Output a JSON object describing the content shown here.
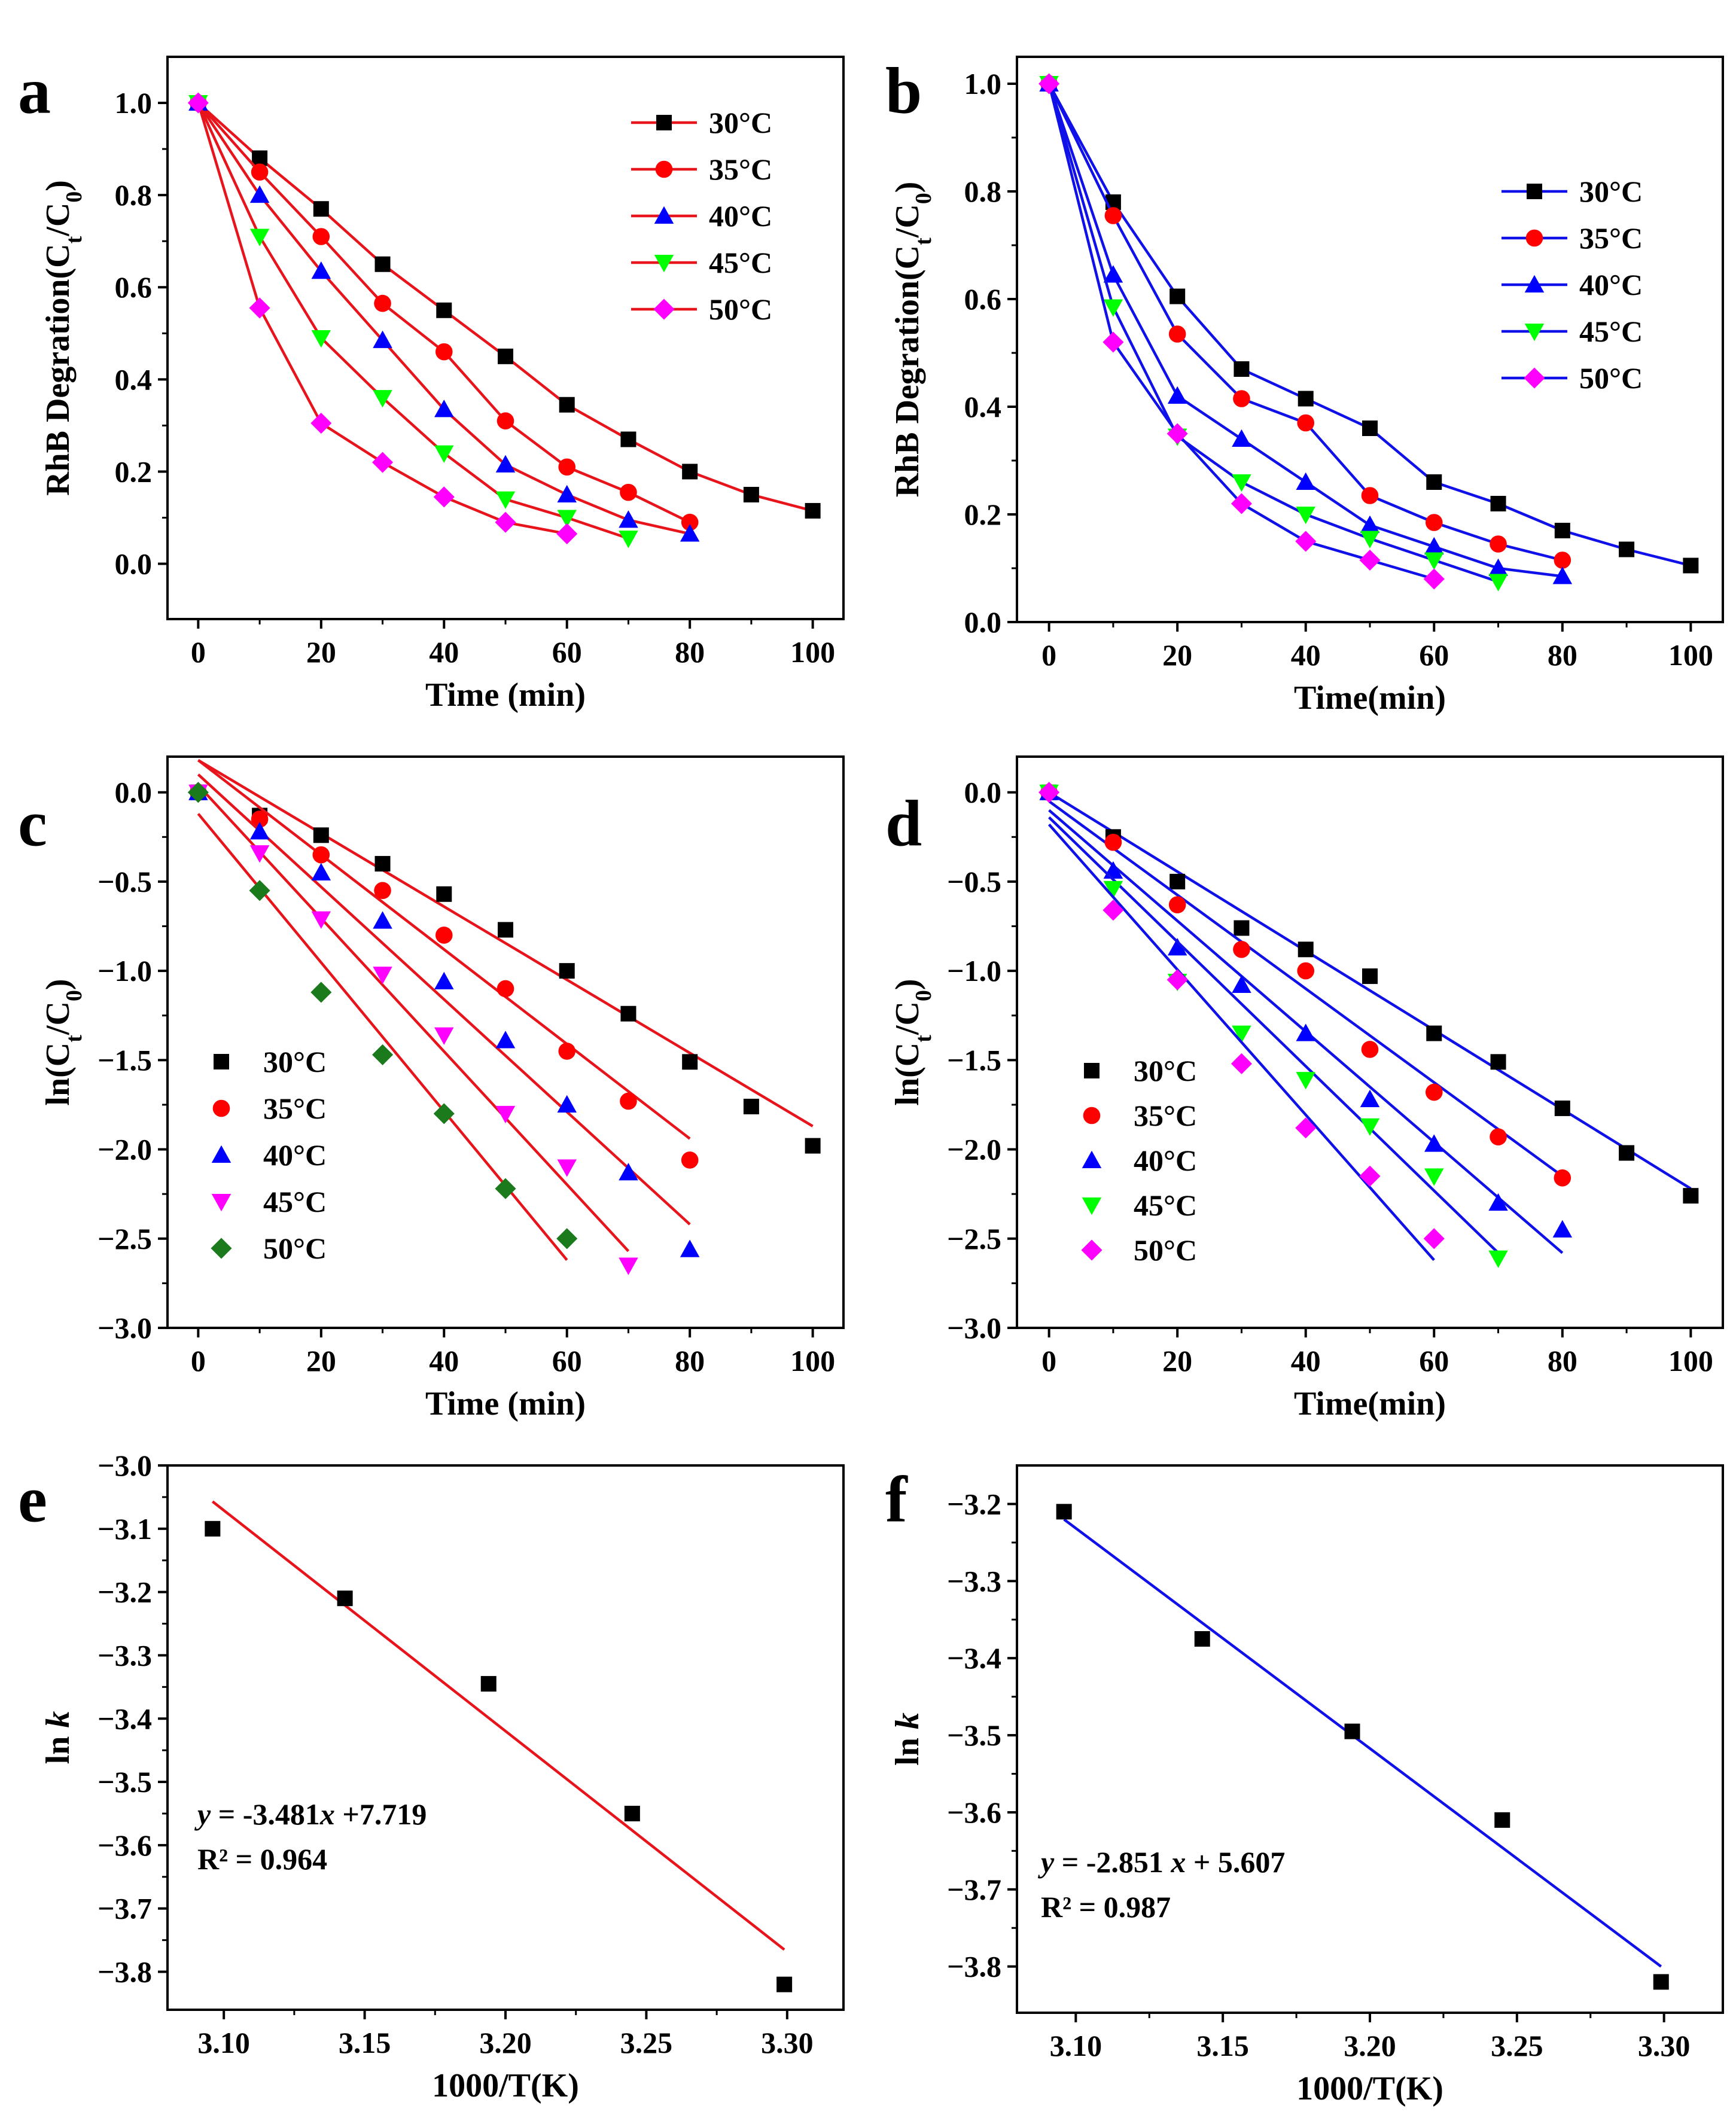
{
  "chart_data": [
    {
      "panel": "a",
      "type": "line",
      "xlabel": "Time (min)",
      "ylabel": "RhB Degration(C_t/C_0)",
      "xlim": [
        -5,
        105
      ],
      "ylim": [
        -0.12,
        1.1
      ],
      "xticks": [
        0,
        20,
        40,
        60,
        80,
        100
      ],
      "yticks": [
        0.0,
        0.2,
        0.4,
        0.6,
        0.8,
        1.0
      ],
      "series": [
        {
          "name": "30°C",
          "color": "#e8141c",
          "marker": "square",
          "marker_color": "#000000",
          "x": [
            0,
            10,
            20,
            30,
            40,
            50,
            60,
            70,
            80,
            90,
            100
          ],
          "y": [
            1.0,
            0.88,
            0.77,
            0.65,
            0.55,
            0.45,
            0.345,
            0.27,
            0.2,
            0.15,
            0.115
          ]
        },
        {
          "name": "35°C",
          "color": "#e8141c",
          "marker": "circle",
          "marker_color": "#ff0000",
          "x": [
            0,
            10,
            20,
            30,
            40,
            50,
            60,
            70,
            80
          ],
          "y": [
            1.0,
            0.85,
            0.71,
            0.565,
            0.46,
            0.31,
            0.21,
            0.155,
            0.09
          ]
        },
        {
          "name": "40°C",
          "color": "#e8141c",
          "marker": "triangle-up",
          "marker_color": "#0000ff",
          "x": [
            0,
            10,
            20,
            30,
            40,
            50,
            60,
            70,
            80
          ],
          "y": [
            1.0,
            0.8,
            0.635,
            0.485,
            0.335,
            0.215,
            0.15,
            0.095,
            0.065
          ]
        },
        {
          "name": "45°C",
          "color": "#e8141c",
          "marker": "triangle-down",
          "marker_color": "#00ff00",
          "x": [
            0,
            10,
            20,
            30,
            40,
            50,
            60,
            70
          ],
          "y": [
            1.0,
            0.71,
            0.49,
            0.36,
            0.24,
            0.14,
            0.1,
            0.055
          ]
        },
        {
          "name": "50°C",
          "color": "#e8141c",
          "marker": "diamond",
          "marker_color": "#ff00ff",
          "x": [
            0,
            10,
            20,
            30,
            40,
            50,
            60
          ],
          "y": [
            1.0,
            0.555,
            0.305,
            0.22,
            0.145,
            0.09,
            0.065
          ]
        }
      ],
      "legend": "top-right"
    },
    {
      "panel": "b",
      "type": "line",
      "xlabel": "Time(min)",
      "ylabel": "RhB Degration(C_t/C_0)",
      "xlim": [
        -5,
        105
      ],
      "ylim": [
        0.0,
        1.05
      ],
      "xticks": [
        0,
        20,
        40,
        60,
        80,
        100
      ],
      "yticks": [
        0.0,
        0.2,
        0.4,
        0.6,
        0.8,
        1.0
      ],
      "series": [
        {
          "name": "30°C",
          "color": "#1010e8",
          "marker": "square",
          "marker_color": "#000000",
          "x": [
            0,
            10,
            20,
            30,
            40,
            50,
            60,
            70,
            80,
            90,
            100
          ],
          "y": [
            1.0,
            0.78,
            0.605,
            0.47,
            0.415,
            0.36,
            0.26,
            0.22,
            0.17,
            0.135,
            0.105
          ]
        },
        {
          "name": "35°C",
          "color": "#1010e8",
          "marker": "circle",
          "marker_color": "#ff0000",
          "x": [
            0,
            10,
            20,
            30,
            40,
            50,
            60,
            70,
            80
          ],
          "y": [
            1.0,
            0.755,
            0.535,
            0.415,
            0.37,
            0.235,
            0.185,
            0.145,
            0.115
          ]
        },
        {
          "name": "40°C",
          "color": "#1010e8",
          "marker": "triangle-up",
          "marker_color": "#0000ff",
          "x": [
            0,
            10,
            20,
            30,
            40,
            50,
            60,
            70,
            80
          ],
          "y": [
            1.0,
            0.645,
            0.42,
            0.34,
            0.26,
            0.18,
            0.14,
            0.1,
            0.085
          ]
        },
        {
          "name": "45°C",
          "color": "#1010e8",
          "marker": "triangle-down",
          "marker_color": "#00ff00",
          "x": [
            0,
            10,
            20,
            30,
            40,
            50,
            60,
            70
          ],
          "y": [
            1.0,
            0.585,
            0.345,
            0.26,
            0.2,
            0.155,
            0.115,
            0.075
          ]
        },
        {
          "name": "50°C",
          "color": "#1010e8",
          "marker": "diamond",
          "marker_color": "#ff00ff",
          "x": [
            0,
            10,
            20,
            30,
            40,
            50,
            60
          ],
          "y": [
            1.0,
            0.52,
            0.35,
            0.22,
            0.15,
            0.115,
            0.08
          ]
        }
      ],
      "legend": "right"
    },
    {
      "panel": "c",
      "type": "scatter",
      "xlabel": "Time (min)",
      "ylabel": "ln(C_t/C_0)",
      "xlim": [
        -5,
        105
      ],
      "ylim": [
        -3.0,
        0.2
      ],
      "xticks": [
        0,
        20,
        40,
        60,
        80,
        100
      ],
      "yticks": [
        0.0,
        -0.5,
        -1.0,
        -1.5,
        -2.0,
        -2.5,
        -3.0
      ],
      "fit_color": "#e8141c",
      "series": [
        {
          "name": "30°C",
          "marker": "square",
          "marker_color": "#000000",
          "x": [
            0,
            10,
            20,
            30,
            40,
            50,
            60,
            70,
            80,
            90,
            100
          ],
          "y": [
            0.0,
            -0.13,
            -0.24,
            -0.4,
            -0.57,
            -0.77,
            -1.0,
            -1.24,
            -1.51,
            -1.76,
            -1.98
          ],
          "fit": [
            [
              0,
              0.18
            ],
            [
              100,
              -1.87
            ]
          ]
        },
        {
          "name": "35°C",
          "marker": "circle",
          "marker_color": "#ff0000",
          "x": [
            0,
            10,
            20,
            30,
            40,
            50,
            60,
            70,
            80
          ],
          "y": [
            0.0,
            -0.15,
            -0.35,
            -0.55,
            -0.8,
            -1.1,
            -1.45,
            -1.73,
            -2.06
          ],
          "fit": [
            [
              0,
              0.18
            ],
            [
              80,
              -1.94
            ]
          ]
        },
        {
          "name": "40°C",
          "marker": "triangle-up",
          "marker_color": "#0000ff",
          "x": [
            0,
            10,
            20,
            30,
            40,
            50,
            60,
            70,
            80
          ],
          "y": [
            0.0,
            -0.22,
            -0.45,
            -0.72,
            -1.06,
            -1.39,
            -1.75,
            -2.13,
            -2.56
          ],
          "fit": [
            [
              0,
              0.1
            ],
            [
              80,
              -2.42
            ]
          ]
        },
        {
          "name": "45°C",
          "marker": "triangle-down",
          "marker_color": "#ff00ff",
          "x": [
            0,
            10,
            20,
            30,
            40,
            50,
            60,
            70
          ],
          "y": [
            0.0,
            -0.34,
            -0.71,
            -1.02,
            -1.36,
            -1.8,
            -2.1,
            -2.65
          ],
          "fit": [
            [
              0,
              0.04
            ],
            [
              70,
              -2.57
            ]
          ]
        },
        {
          "name": "50°C",
          "marker": "diamond",
          "marker_color": "#1b7a1b",
          "x": [
            0,
            10,
            20,
            30,
            40,
            50,
            60
          ],
          "y": [
            0.0,
            -0.55,
            -1.12,
            -1.47,
            -1.8,
            -2.22,
            -2.5
          ],
          "fit": [
            [
              0,
              -0.12
            ],
            [
              60,
              -2.62
            ]
          ]
        }
      ],
      "legend": "bottom-left"
    },
    {
      "panel": "d",
      "type": "scatter",
      "xlabel": "Time(min)",
      "ylabel": "ln(C_t/C_0)",
      "xlim": [
        -5,
        105
      ],
      "ylim": [
        -3.0,
        0.2
      ],
      "xticks": [
        0,
        20,
        40,
        60,
        80,
        100
      ],
      "yticks": [
        0.0,
        -0.5,
        -1.0,
        -1.5,
        -2.0,
        -2.5,
        -3.0
      ],
      "fit_color": "#1010e8",
      "series": [
        {
          "name": "30°C",
          "marker": "square",
          "marker_color": "#000000",
          "x": [
            0,
            10,
            20,
            30,
            40,
            50,
            60,
            70,
            80,
            90,
            100
          ],
          "y": [
            0.0,
            -0.25,
            -0.5,
            -0.76,
            -0.88,
            -1.03,
            -1.35,
            -1.51,
            -1.77,
            -2.02,
            -2.26
          ],
          "fit": [
            [
              0,
              0.0
            ],
            [
              100,
              -2.22
            ]
          ]
        },
        {
          "name": "35°C",
          "marker": "circle",
          "marker_color": "#ff0000",
          "x": [
            0,
            10,
            20,
            30,
            40,
            50,
            60,
            70,
            80
          ],
          "y": [
            0.0,
            -0.28,
            -0.63,
            -0.88,
            -1.0,
            -1.44,
            -1.68,
            -1.93,
            -2.16
          ],
          "fit": [
            [
              0,
              -0.05
            ],
            [
              80,
              -2.15
            ]
          ]
        },
        {
          "name": "40°C",
          "marker": "triangle-up",
          "marker_color": "#0000ff",
          "x": [
            0,
            10,
            20,
            30,
            40,
            50,
            60,
            70,
            80
          ],
          "y": [
            0.0,
            -0.44,
            -0.87,
            -1.08,
            -1.35,
            -1.72,
            -1.97,
            -2.3,
            -2.45
          ],
          "fit": [
            [
              0,
              -0.1
            ],
            [
              80,
              -2.58
            ]
          ]
        },
        {
          "name": "45°C",
          "marker": "triangle-down",
          "marker_color": "#00ff00",
          "x": [
            0,
            10,
            20,
            30,
            40,
            50,
            60,
            70
          ],
          "y": [
            0.0,
            -0.54,
            -1.06,
            -1.35,
            -1.61,
            -1.87,
            -2.15,
            -2.61
          ],
          "fit": [
            [
              0,
              -0.14
            ],
            [
              70,
              -2.58
            ]
          ]
        },
        {
          "name": "50°C",
          "marker": "diamond",
          "marker_color": "#ff00ff",
          "x": [
            0,
            10,
            20,
            30,
            40,
            50,
            60
          ],
          "y": [
            0.0,
            -0.66,
            -1.05,
            -1.52,
            -1.88,
            -2.15,
            -2.5
          ],
          "fit": [
            [
              0,
              -0.18
            ],
            [
              60,
              -2.62
            ]
          ]
        }
      ],
      "legend": "bottom-left"
    },
    {
      "panel": "e",
      "type": "scatter",
      "xlabel": "1000/T(K)",
      "ylabel": "ln k",
      "xlim": [
        3.08,
        3.32
      ],
      "ylim": [
        -3.86,
        -3.0
      ],
      "xticks": [
        3.1,
        3.15,
        3.2,
        3.25,
        3.3
      ],
      "yticks": [
        -3.0,
        -3.1,
        -3.2,
        -3.3,
        -3.4,
        -3.5,
        -3.6,
        -3.7,
        -3.8
      ],
      "fit_color": "#e8141c",
      "series": [
        {
          "name": "ln k",
          "marker": "square",
          "marker_color": "#000000",
          "x": [
            3.096,
            3.143,
            3.194,
            3.245,
            3.299
          ],
          "y": [
            -3.1,
            -3.21,
            -3.345,
            -3.55,
            -3.82
          ],
          "fit": [
            [
              3.096,
              -3.057
            ],
            [
              3.299,
              -3.765
            ]
          ]
        }
      ],
      "equation": "y = -3.481x +7.719",
      "r2": "R² = 0.964"
    },
    {
      "panel": "f",
      "type": "scatter",
      "xlabel": "1000/T(K)",
      "ylabel": "ln k",
      "xlim": [
        3.08,
        3.32
      ],
      "ylim": [
        -3.86,
        -3.15
      ],
      "xticks": [
        3.1,
        3.15,
        3.2,
        3.25,
        3.3
      ],
      "yticks": [
        -3.2,
        -3.3,
        -3.4,
        -3.5,
        -3.6,
        -3.7,
        -3.8
      ],
      "fit_color": "#1010e8",
      "series": [
        {
          "name": "ln k",
          "marker": "square",
          "marker_color": "#000000",
          "x": [
            3.096,
            3.143,
            3.194,
            3.245,
            3.299
          ],
          "y": [
            -3.21,
            -3.375,
            -3.495,
            -3.61,
            -3.82
          ],
          "fit": [
            [
              3.096,
              -3.22
            ],
            [
              3.299,
              -3.8
            ]
          ]
        }
      ],
      "equation": "y = -2.851 x + 5.607",
      "r2": "R² = 0.987"
    }
  ]
}
